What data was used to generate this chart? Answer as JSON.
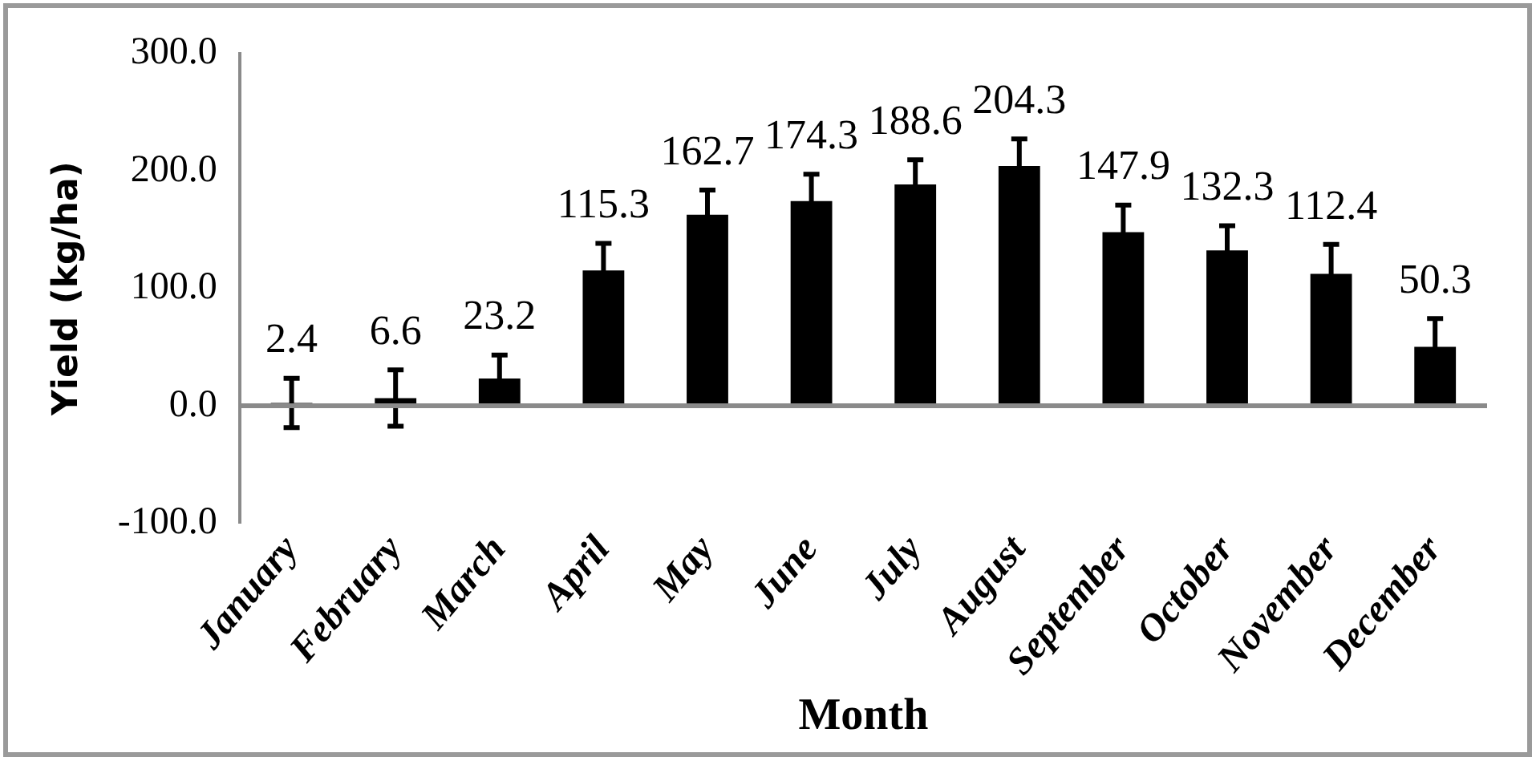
{
  "chart_data": {
    "type": "bar",
    "xlabel": "Month",
    "ylabel": "Yield (kg/ha)",
    "categories": [
      "January",
      "February",
      "March",
      "April",
      "May",
      "June",
      "July",
      "August",
      "September",
      "October",
      "November",
      "December"
    ],
    "values": [
      2.4,
      6.6,
      23.2,
      115.3,
      162.7,
      174.3,
      188.6,
      204.3,
      147.9,
      132.3,
      112.4,
      50.3
    ],
    "errors": [
      21,
      24,
      20,
      23,
      21,
      23,
      21,
      23,
      23,
      21,
      25,
      24
    ],
    "color": "#000000",
    "ylim": [
      -100,
      300
    ],
    "yticks": [
      {
        "value": -100,
        "label": "-100.0"
      },
      {
        "value": 0,
        "label": "0.0"
      },
      {
        "value": 100,
        "label": "100.0"
      },
      {
        "value": 200,
        "label": "200.0"
      },
      {
        "value": 300,
        "label": "300.0"
      }
    ],
    "ref_lines": [
      {
        "axis": "y",
        "value": 0,
        "color": "#8a8a8a"
      }
    ],
    "data_labels": true,
    "grid": false,
    "legend": false
  }
}
